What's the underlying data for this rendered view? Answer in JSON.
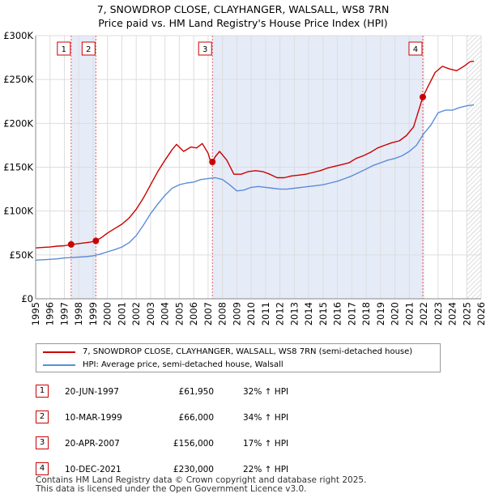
{
  "chart_data": {
    "type": "line",
    "title": "7, SNOWDROP CLOSE, CLAYHANGER, WALSALL, WS8 7RN",
    "subtitle": "Price paid vs. HM Land Registry's House Price Index (HPI)",
    "xlabel": "",
    "ylabel": "",
    "xlim": [
      1995,
      2026
    ],
    "ylim": [
      0,
      300000
    ],
    "x_ticks": [
      "1995",
      "1996",
      "1997",
      "1998",
      "1999",
      "2000",
      "2001",
      "2002",
      "2003",
      "2004",
      "2005",
      "2006",
      "2007",
      "2008",
      "2009",
      "2010",
      "2011",
      "2012",
      "2013",
      "2014",
      "2015",
      "2016",
      "2017",
      "2018",
      "2019",
      "2020",
      "2021",
      "2022",
      "2023",
      "2024",
      "2025",
      "2026"
    ],
    "y_ticks": [
      {
        "value": 0,
        "label": "£0"
      },
      {
        "value": 50000,
        "label": "£50K"
      },
      {
        "value": 100000,
        "label": "£100K"
      },
      {
        "value": 150000,
        "label": "£150K"
      },
      {
        "value": 200000,
        "label": "£200K"
      },
      {
        "value": 250000,
        "label": "£250K"
      },
      {
        "value": 300000,
        "label": "£300K"
      }
    ],
    "grid": true,
    "series": [
      {
        "name": "7, SNOWDROP CLOSE, CLAYHANGER, WALSALL, WS8 7RN (semi-detached house)",
        "color": "#cc0000",
        "x": [
          1995.0,
          1995.5,
          1996.0,
          1996.5,
          1997.0,
          1997.47,
          1997.8,
          1998.3,
          1998.8,
          1999.19,
          1999.6,
          2000.0,
          2000.5,
          2001.0,
          2001.5,
          2002.0,
          2002.5,
          2003.0,
          2003.5,
          2004.0,
          2004.5,
          2004.8,
          2005.3,
          2005.8,
          2006.2,
          2006.6,
          2007.0,
          2007.2,
          2007.3,
          2007.5,
          2007.8,
          2008.3,
          2008.8,
          2009.3,
          2009.8,
          2010.3,
          2010.8,
          2011.3,
          2011.8,
          2012.3,
          2012.8,
          2013.3,
          2013.8,
          2014.3,
          2014.8,
          2015.3,
          2015.8,
          2016.3,
          2016.8,
          2017.3,
          2017.8,
          2018.3,
          2018.8,
          2019.3,
          2019.8,
          2020.3,
          2020.8,
          2021.3,
          2021.94,
          2022.3,
          2022.8,
          2023.3,
          2023.8,
          2024.3,
          2024.8,
          2025.2,
          2025.5
        ],
        "y": [
          58000,
          58500,
          59000,
          60000,
          60500,
          61950,
          62500,
          63500,
          64500,
          66000,
          70000,
          75000,
          80000,
          85000,
          92000,
          102000,
          115000,
          130000,
          145000,
          158000,
          170000,
          176000,
          168000,
          173000,
          172000,
          177000,
          166000,
          155000,
          156000,
          162000,
          168000,
          158000,
          142000,
          142000,
          145000,
          146000,
          145000,
          142000,
          138000,
          138000,
          140000,
          141000,
          142000,
          144000,
          146000,
          149000,
          151000,
          153000,
          155000,
          160000,
          163000,
          167000,
          172000,
          175000,
          178000,
          180000,
          186000,
          196000,
          230000,
          242000,
          258000,
          265000,
          262000,
          260000,
          265000,
          270000,
          271000
        ]
      },
      {
        "name": "HPI: Average price, semi-detached house, Walsall",
        "color": "#5b8dd6",
        "x": [
          1995.0,
          1995.5,
          1996.0,
          1996.5,
          1997.0,
          1997.5,
          1998.0,
          1998.5,
          1999.0,
          1999.5,
          2000.0,
          2000.5,
          2001.0,
          2001.5,
          2002.0,
          2002.5,
          2003.0,
          2003.5,
          2004.0,
          2004.5,
          2005.0,
          2005.5,
          2006.0,
          2006.5,
          2007.0,
          2007.5,
          2008.0,
          2008.5,
          2009.0,
          2009.5,
          2010.0,
          2010.5,
          2011.0,
          2011.5,
          2012.0,
          2012.5,
          2013.0,
          2013.5,
          2014.0,
          2014.5,
          2015.0,
          2015.5,
          2016.0,
          2016.5,
          2017.0,
          2017.5,
          2018.0,
          2018.5,
          2019.0,
          2019.5,
          2020.0,
          2020.5,
          2021.0,
          2021.5,
          2022.0,
          2022.5,
          2023.0,
          2023.5,
          2024.0,
          2024.5,
          2025.0,
          2025.5
        ],
        "y": [
          44000,
          44500,
          45000,
          45500,
          46500,
          47000,
          47500,
          48000,
          49000,
          51000,
          53500,
          56000,
          59000,
          64000,
          72000,
          84000,
          97000,
          108000,
          118000,
          126000,
          130000,
          132000,
          133000,
          136000,
          137000,
          138000,
          136000,
          130000,
          123000,
          124000,
          127000,
          128000,
          127000,
          126000,
          125000,
          125000,
          126000,
          127000,
          128000,
          129000,
          130000,
          132000,
          134000,
          137000,
          140000,
          144000,
          148000,
          152000,
          155000,
          158000,
          160000,
          163000,
          168000,
          175000,
          188000,
          198000,
          212000,
          215000,
          215000,
          218000,
          220000,
          221000
        ]
      }
    ],
    "transactions": [
      {
        "n": "1",
        "x": 1997.47,
        "y": 61950
      },
      {
        "n": "2",
        "x": 1999.19,
        "y": 66000
      },
      {
        "n": "3",
        "x": 2007.3,
        "y": 156000
      },
      {
        "n": "4",
        "x": 2021.94,
        "y": 230000
      }
    ]
  },
  "legend": {
    "property": "7, SNOWDROP CLOSE, CLAYHANGER, WALSALL, WS8 7RN (semi-detached house)",
    "hpi": "HPI: Average price, semi-detached house, Walsall",
    "property_color": "#cc0000",
    "hpi_color": "#5b8dd6"
  },
  "table": [
    {
      "n": "1",
      "date": "20-JUN-1997",
      "price": "£61,950",
      "hpi": "32% ↑ HPI"
    },
    {
      "n": "2",
      "date": "10-MAR-1999",
      "price": "£66,000",
      "hpi": "34% ↑ HPI"
    },
    {
      "n": "3",
      "date": "20-APR-2007",
      "price": "£156,000",
      "hpi": "17% ↑ HPI"
    },
    {
      "n": "4",
      "date": "10-DEC-2021",
      "price": "£230,000",
      "hpi": "22% ↑ HPI"
    }
  ],
  "footer": {
    "line1": "Contains HM Land Registry data © Crown copyright and database right 2025.",
    "line2": "This data is licensed under the Open Government Licence v3.0."
  }
}
